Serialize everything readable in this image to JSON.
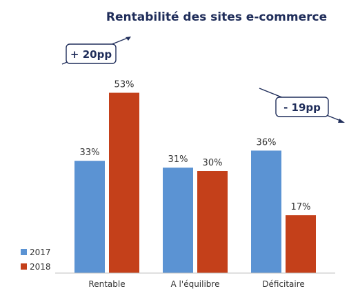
{
  "chart_data": {
    "type": "bar",
    "title": "Rentabilité des sites e-commerce",
    "xlabel": "",
    "ylabel": "",
    "categories": [
      "Rentable",
      "A l'équilibre",
      "Déficitaire"
    ],
    "series": [
      {
        "name": "2017",
        "values": [
          33,
          31,
          36
        ],
        "labels": [
          "33%",
          "31%",
          "36%"
        ],
        "color": "#5b93d3"
      },
      {
        "name": "2018",
        "values": [
          53,
          30,
          17
        ],
        "labels": [
          "53%",
          "30%",
          "17%"
        ],
        "color": "#c4401a"
      }
    ],
    "ylim": [
      0,
      60
    ],
    "grid": false,
    "legend": "bottom-left",
    "annotations": [
      {
        "text": "+ 20pp",
        "category": "Rentable"
      },
      {
        "text": "- 19pp",
        "category": "Déficitaire"
      }
    ]
  },
  "colors": {
    "title": "#1f2d5a",
    "text": "#333333",
    "axis": "#bfbfbf",
    "callout_border": "#1f2d5a"
  }
}
